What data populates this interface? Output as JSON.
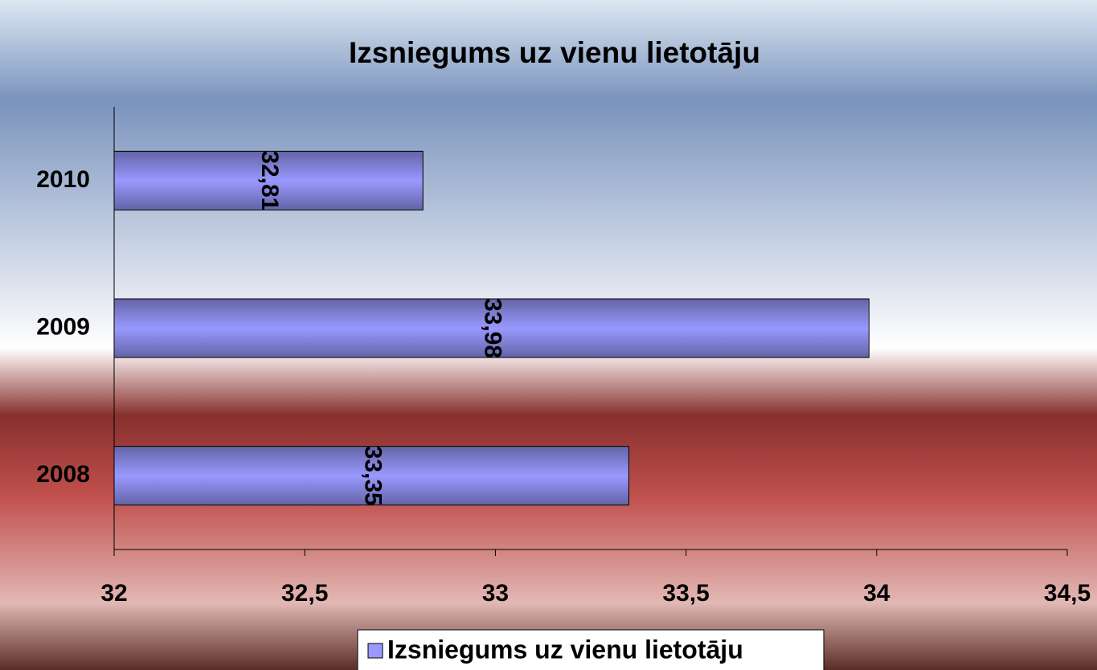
{
  "chart_data": {
    "type": "barh",
    "title": "Izsniegums uz vienu lietotāju",
    "categories": [
      "2008",
      "2009",
      "2010"
    ],
    "series": [
      {
        "name": "Izsniegums uz vienu lietotāju",
        "color": "#9999ff",
        "values": [
          33.35,
          33.98,
          32.81
        ],
        "value_labels": [
          "33,35",
          "33,98",
          "32,81"
        ]
      }
    ],
    "xlim": [
      32,
      34.5
    ],
    "xticks": [
      32,
      {
        "value": 32.5,
        "label": "32,5"
      },
      33,
      {
        "value": 33.5,
        "label": "33,5"
      },
      34,
      {
        "value": 34.5,
        "label": "34,5"
      }
    ],
    "legend": "bottom"
  }
}
